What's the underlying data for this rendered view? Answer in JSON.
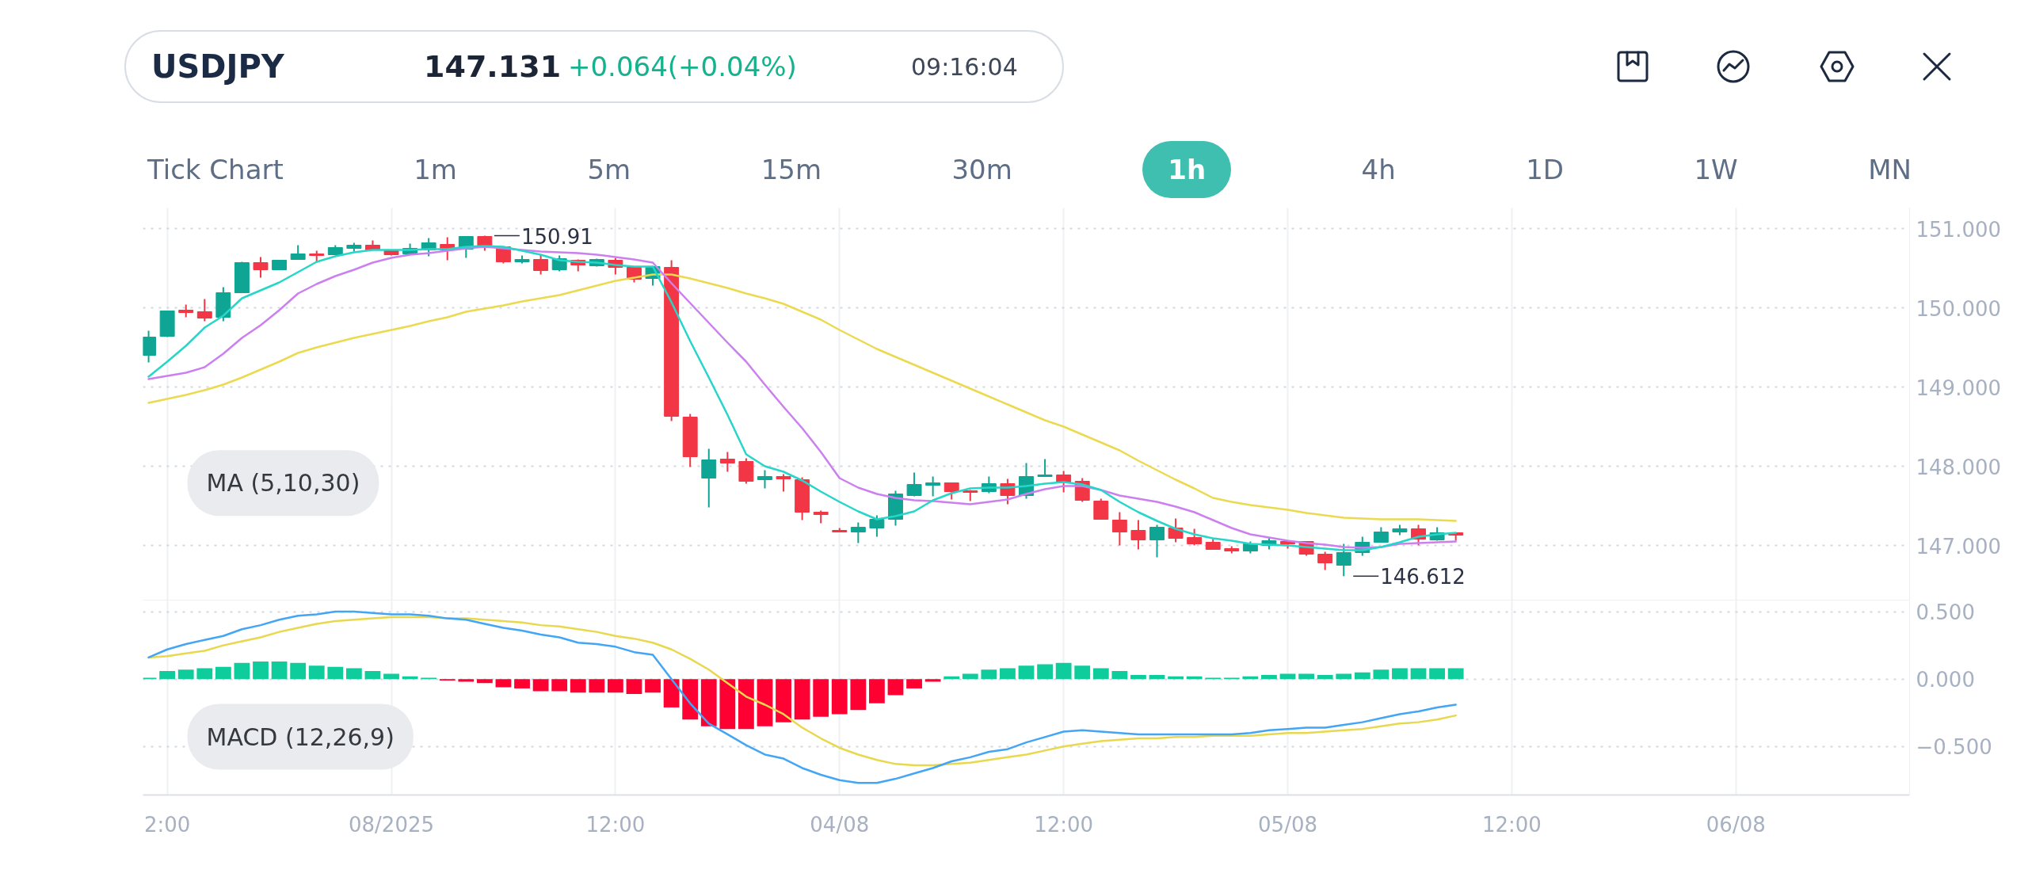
{
  "chart_data": [
    {
      "type": "other",
      "title": "USDJPY",
      "annotations": [
        "147.131",
        "+0.064(+0.04%)",
        "09:16:04"
      ],
      "colors": [
        "#1b2536",
        "#14b38e",
        "#3d4758"
      ]
    },
    {
      "type": "other",
      "annotations": [
        "Tick Chart",
        "1m",
        "5m",
        "15m",
        "30m",
        "1h",
        "4h",
        "1D",
        "1W",
        "MN"
      ]
    },
    {
      "type": "candlestick",
      "categories": [
        null,
        null,
        null,
        null,
        null,
        null,
        null,
        null,
        null,
        null,
        null,
        null,
        null,
        null,
        null,
        null,
        null,
        null,
        null,
        null,
        null,
        null,
        null,
        null,
        null,
        null,
        null,
        null,
        null,
        null,
        null,
        null,
        null,
        null,
        null,
        null,
        null,
        null,
        null,
        null,
        null,
        null,
        null,
        null,
        null,
        null,
        null,
        null,
        null,
        null,
        null,
        null,
        null,
        null,
        null,
        null,
        null,
        null,
        null,
        null,
        null,
        null,
        null,
        null,
        null,
        null,
        null,
        null,
        null,
        null,
        null,
        null,
        null,
        null,
        null,
        null,
        null,
        null,
        null,
        null,
        null,
        null,
        null,
        null,
        null,
        null,
        null,
        null,
        null,
        null,
        null,
        null,
        null,
        null,
        null
      ],
      "ohlc": [
        [
          149.4,
          149.71,
          149.31,
          149.63
        ],
        [
          149.64,
          149.96,
          149.63,
          149.96
        ],
        [
          149.97,
          150.04,
          149.88,
          149.94
        ],
        [
          149.95,
          150.11,
          149.83,
          149.87
        ],
        [
          149.88,
          150.26,
          149.83,
          150.19
        ],
        [
          150.19,
          150.58,
          150.19,
          150.57
        ],
        [
          150.57,
          150.64,
          150.38,
          150.48
        ],
        [
          150.48,
          150.6,
          150.48,
          150.6
        ],
        [
          150.61,
          150.79,
          150.61,
          150.68
        ],
        [
          150.68,
          150.72,
          150.57,
          150.66
        ],
        [
          150.67,
          150.79,
          150.67,
          150.76
        ],
        [
          150.75,
          150.82,
          150.71,
          150.79
        ],
        [
          150.79,
          150.85,
          150.73,
          150.73
        ],
        [
          150.72,
          150.72,
          150.66,
          150.67
        ],
        [
          150.68,
          150.81,
          150.68,
          150.75
        ],
        [
          150.73,
          150.88,
          150.65,
          150.82
        ],
        [
          150.8,
          150.89,
          150.6,
          150.73
        ],
        [
          150.74,
          150.9,
          150.63,
          150.9
        ],
        [
          150.9,
          150.91,
          150.72,
          150.77
        ],
        [
          150.77,
          150.77,
          150.56,
          150.58
        ],
        [
          150.58,
          150.66,
          150.56,
          150.61
        ],
        [
          150.61,
          150.67,
          150.42,
          150.47
        ],
        [
          150.48,
          150.66,
          150.46,
          150.62
        ],
        [
          150.6,
          150.61,
          150.46,
          150.54
        ],
        [
          150.53,
          150.62,
          150.52,
          150.61
        ],
        [
          150.6,
          150.63,
          150.42,
          150.51
        ],
        [
          150.51,
          150.51,
          150.32,
          150.36
        ],
        [
          150.37,
          150.53,
          150.28,
          150.52
        ],
        [
          150.51,
          150.6,
          148.57,
          148.63
        ],
        [
          148.62,
          148.66,
          147.99,
          148.12
        ],
        [
          147.85,
          148.22,
          147.48,
          148.08
        ],
        [
          148.09,
          148.18,
          147.93,
          148.04
        ],
        [
          148.06,
          148.1,
          147.78,
          147.81
        ],
        [
          147.83,
          147.95,
          147.72,
          147.87
        ],
        [
          147.87,
          147.9,
          147.68,
          147.84
        ],
        [
          147.83,
          147.86,
          147.32,
          147.42
        ],
        [
          147.42,
          147.44,
          147.28,
          147.39
        ],
        [
          147.19,
          147.22,
          147.17,
          147.17
        ],
        [
          147.17,
          147.29,
          147.03,
          147.23
        ],
        [
          147.22,
          147.38,
          147.11,
          147.33
        ],
        [
          147.33,
          147.69,
          147.25,
          147.65
        ],
        [
          147.63,
          147.92,
          147.62,
          147.77
        ],
        [
          147.76,
          147.87,
          147.62,
          147.79
        ],
        [
          147.79,
          147.79,
          147.58,
          147.68
        ],
        [
          147.69,
          147.7,
          147.56,
          147.67
        ],
        [
          147.68,
          147.87,
          147.66,
          147.78
        ],
        [
          147.78,
          147.84,
          147.52,
          147.63
        ],
        [
          147.63,
          148.04,
          147.59,
          147.87
        ],
        [
          147.87,
          148.09,
          147.87,
          147.89
        ],
        [
          147.89,
          147.94,
          147.67,
          147.8
        ],
        [
          147.81,
          147.85,
          147.55,
          147.57
        ],
        [
          147.56,
          147.59,
          147.33,
          147.33
        ],
        [
          147.32,
          147.42,
          147.0,
          147.17
        ],
        [
          147.19,
          147.32,
          146.95,
          147.07
        ],
        [
          147.07,
          147.26,
          146.85,
          147.23
        ],
        [
          147.22,
          147.34,
          147.04,
          147.09
        ],
        [
          147.1,
          147.21,
          147.0,
          147.02
        ],
        [
          147.04,
          147.08,
          146.95,
          146.95
        ],
        [
          146.96,
          146.99,
          146.9,
          146.93
        ],
        [
          146.93,
          147.05,
          146.9,
          147.02
        ],
        [
          147.0,
          147.1,
          146.95,
          147.06
        ],
        [
          147.05,
          147.05,
          146.96,
          147.02
        ],
        [
          147.05,
          147.05,
          146.87,
          146.89
        ],
        [
          146.89,
          146.92,
          146.69,
          146.78
        ],
        [
          146.75,
          147.02,
          146.612,
          146.91
        ],
        [
          146.91,
          147.11,
          146.87,
          147.04
        ],
        [
          147.04,
          147.23,
          147.04,
          147.17
        ],
        [
          147.17,
          147.26,
          147.13,
          147.21
        ],
        [
          147.21,
          147.26,
          147.0,
          147.08
        ],
        [
          147.07,
          147.23,
          147.06,
          147.16
        ],
        [
          147.16,
          147.16,
          147.06,
          147.13
        ],
        null,
        null,
        null,
        null,
        null,
        null,
        null,
        null,
        null,
        null,
        null,
        null,
        null,
        null,
        null,
        null,
        null,
        null,
        null,
        null,
        null,
        null,
        null,
        null
      ],
      "colors": [
        "#0ea594",
        "#0ea594",
        "#f23645",
        "#f23645",
        "#0ea594",
        "#0ea594",
        "#f23645",
        "#0ea594",
        "#0ea594",
        "#f23645",
        "#0ea594",
        "#0ea594",
        "#f23645",
        "#f23645",
        "#0ea594",
        "#0ea594",
        "#f23645",
        "#0ea594",
        "#f23645",
        "#f23645",
        "#0ea594",
        "#f23645",
        "#0ea594",
        "#f23645",
        "#0ea594",
        "#f23645",
        "#f23645",
        "#0ea594",
        "#f23645",
        "#f23645",
        "#0ea594",
        "#f23645",
        "#f23645",
        "#0ea594",
        "#f23645",
        "#f23645",
        "#f23645",
        "#f23645",
        "#0ea594",
        "#0ea594",
        "#0ea594",
        "#0ea594",
        "#0ea594",
        "#f23645",
        "#f23645",
        "#0ea594",
        "#f23645",
        "#0ea594",
        "#0ea594",
        "#f23645",
        "#f23645",
        "#f23645",
        "#f23645",
        "#f23645",
        "#0ea594",
        "#f23645",
        "#f23645",
        "#f23645",
        "#f23645",
        "#0ea594",
        "#0ea594",
        "#f23645",
        "#f23645",
        "#f23645",
        "#0ea594",
        "#0ea594",
        "#0ea594",
        "#0ea594",
        "#f23645",
        "#0ea594",
        "#f23645",
        null,
        null,
        null,
        null,
        null,
        null,
        null,
        null,
        null,
        null,
        null,
        null,
        null,
        null,
        null,
        null,
        null,
        null,
        null,
        null,
        null,
        null,
        null,
        null
      ],
      "series": [
        {
          "type": "line",
          "color": "#ebda50",
          "values": [
            148.8,
            148.85,
            148.9,
            148.96,
            149.03,
            149.12,
            149.22,
            149.32,
            149.43,
            149.5,
            149.56,
            149.62,
            149.67,
            149.72,
            149.77,
            149.83,
            149.88,
            149.95,
            149.99,
            150.03,
            150.08,
            150.12,
            150.16,
            150.22,
            150.28,
            150.34,
            150.38,
            150.42,
            150.42,
            150.37,
            150.31,
            150.25,
            150.18,
            150.12,
            150.05,
            149.95,
            149.85,
            149.72,
            149.6,
            149.48,
            149.38,
            149.28,
            149.18,
            149.08,
            148.98,
            148.88,
            148.78,
            148.68,
            148.58,
            148.5,
            148.4,
            148.3,
            148.2,
            148.07,
            147.95,
            147.83,
            147.72,
            147.6,
            147.55,
            147.51,
            147.48,
            147.45,
            147.41,
            147.38,
            147.35,
            147.34,
            147.33,
            147.33,
            147.33,
            147.32,
            147.31,
            null,
            null,
            null,
            null,
            null,
            null,
            null,
            null,
            null,
            null,
            null,
            null,
            null,
            null,
            null,
            null,
            null,
            null,
            null,
            null,
            null,
            null,
            null,
            null
          ]
        },
        {
          "type": "line",
          "color": "#cc80f0",
          "values": [
            149.1,
            149.14,
            149.18,
            149.25,
            149.42,
            149.62,
            149.78,
            149.97,
            150.18,
            150.3,
            150.4,
            150.48,
            150.57,
            150.63,
            150.67,
            150.69,
            150.72,
            150.75,
            150.77,
            150.75,
            150.73,
            150.71,
            150.7,
            150.69,
            150.67,
            150.64,
            150.61,
            150.57,
            150.31,
            150.06,
            149.81,
            149.56,
            149.32,
            149.03,
            148.75,
            148.48,
            148.18,
            147.85,
            147.73,
            147.65,
            147.6,
            147.57,
            147.56,
            147.54,
            147.52,
            147.55,
            147.58,
            147.65,
            147.71,
            147.75,
            147.75,
            147.7,
            147.63,
            147.59,
            147.55,
            147.49,
            147.42,
            147.32,
            147.22,
            147.14,
            147.1,
            147.06,
            147.03,
            147.01,
            146.98,
            146.97,
            146.98,
            147.02,
            147.03,
            147.04,
            147.05,
            null,
            null,
            null,
            null,
            null,
            null,
            null,
            null,
            null,
            null,
            null,
            null,
            null,
            null,
            null,
            null,
            null,
            null,
            null,
            null,
            null,
            null,
            null,
            null
          ]
        },
        {
          "type": "line",
          "color": "#26d6c8",
          "values": [
            149.13,
            149.32,
            149.52,
            149.75,
            149.9,
            150.12,
            150.22,
            150.32,
            150.45,
            150.58,
            150.65,
            150.7,
            150.73,
            150.73,
            150.73,
            150.74,
            150.74,
            150.77,
            150.78,
            150.77,
            150.72,
            150.67,
            150.6,
            150.58,
            150.57,
            150.54,
            150.52,
            150.52,
            150.07,
            149.58,
            149.12,
            148.65,
            148.15,
            148.0,
            147.93,
            147.82,
            147.68,
            147.55,
            147.43,
            147.33,
            147.37,
            147.43,
            147.57,
            147.66,
            147.72,
            147.73,
            147.73,
            147.75,
            147.78,
            147.8,
            147.77,
            147.7,
            147.55,
            147.42,
            147.31,
            147.21,
            147.14,
            147.09,
            147.06,
            147.02,
            147.01,
            147.0,
            146.98,
            146.96,
            146.94,
            146.94,
            146.98,
            147.04,
            147.11,
            147.14,
            147.16,
            null,
            null,
            null,
            null,
            null,
            null,
            null,
            null,
            null,
            null,
            null,
            null,
            null,
            null,
            null,
            null,
            null,
            null,
            null,
            null,
            null,
            null,
            null,
            null
          ]
        }
      ],
      "annotations": [
        "MA (5,10,30)",
        "150.91",
        "146.612"
      ],
      "ylim": [
        146.3,
        151.26
      ],
      "yticks": [
        {
          "value": 147,
          "label": "147.000"
        },
        {
          "value": 148,
          "label": "148.000"
        },
        {
          "value": 149,
          "label": "149.000"
        },
        {
          "value": 150,
          "label": "150.000"
        },
        {
          "value": 151,
          "label": "151.000"
        }
      ],
      "grid": true,
      "tick_labels": "y"
    },
    {
      "type": "bar",
      "categories": [
        null,
        "2:00",
        null,
        null,
        null,
        null,
        null,
        null,
        null,
        null,
        null,
        null,
        null,
        "08/2025",
        null,
        null,
        null,
        null,
        null,
        null,
        null,
        null,
        null,
        null,
        null,
        "12:00",
        null,
        null,
        null,
        null,
        null,
        null,
        null,
        null,
        null,
        null,
        null,
        "04/08",
        null,
        null,
        null,
        null,
        null,
        null,
        null,
        null,
        null,
        null,
        null,
        "12:00",
        null,
        null,
        null,
        null,
        null,
        null,
        null,
        null,
        null,
        null,
        null,
        "05/08",
        null,
        null,
        null,
        null,
        null,
        null,
        null,
        null,
        null,
        null,
        null,
        "12:00",
        null,
        null,
        null,
        null,
        null,
        null,
        null,
        null,
        null,
        null,
        null,
        "06/08",
        null,
        null,
        null,
        null,
        null,
        null,
        null,
        null,
        null
      ],
      "series": [
        {
          "colors": [
            "#0ecc9c",
            "#0ecc9c",
            "#0ecc9c",
            "#0ecc9c",
            "#0ecc9c",
            "#0ecc9c",
            "#0ecc9c",
            "#0ecc9c",
            "#0ecc9c",
            "#0ecc9c",
            "#0ecc9c",
            "#0ecc9c",
            "#0ecc9c",
            "#0ecc9c",
            "#0ecc9c",
            "#0ecc9c",
            "#ff0033",
            "#ff0033",
            "#ff0033",
            "#ff0033",
            "#ff0033",
            "#ff0033",
            "#ff0033",
            "#ff0033",
            "#ff0033",
            "#ff0033",
            "#ff0033",
            "#ff0033",
            "#ff0033",
            "#ff0033",
            "#ff0033",
            "#ff0033",
            "#ff0033",
            "#ff0033",
            "#ff0033",
            "#ff0033",
            "#ff0033",
            "#ff0033",
            "#ff0033",
            "#ff0033",
            "#ff0033",
            "#ff0033",
            "#ff0033",
            "#0ecc9c",
            "#0ecc9c",
            "#0ecc9c",
            "#0ecc9c",
            "#0ecc9c",
            "#0ecc9c",
            "#0ecc9c",
            "#0ecc9c",
            "#0ecc9c",
            "#0ecc9c",
            "#0ecc9c",
            "#0ecc9c",
            "#0ecc9c",
            "#0ecc9c",
            "#0ecc9c",
            "#0ecc9c",
            "#0ecc9c",
            "#0ecc9c",
            "#0ecc9c",
            "#0ecc9c",
            "#0ecc9c",
            "#0ecc9c",
            "#0ecc9c",
            "#0ecc9c",
            "#0ecc9c",
            "#0ecc9c",
            "#0ecc9c",
            "#0ecc9c",
            null,
            null,
            null,
            null,
            null,
            null,
            null,
            null,
            null,
            null,
            null,
            null,
            null,
            null,
            null,
            null,
            null,
            null,
            null,
            null,
            null,
            null,
            null,
            null
          ],
          "values": [
            0.01,
            0.06,
            0.07,
            0.08,
            0.09,
            0.12,
            0.13,
            0.13,
            0.12,
            0.1,
            0.09,
            0.08,
            0.06,
            0.04,
            0.02,
            0.01,
            -0.01,
            -0.02,
            -0.03,
            -0.06,
            -0.07,
            -0.09,
            -0.09,
            -0.1,
            -0.1,
            -0.1,
            -0.11,
            -0.1,
            -0.21,
            -0.3,
            -0.35,
            -0.37,
            -0.37,
            -0.35,
            -0.32,
            -0.3,
            -0.28,
            -0.26,
            -0.23,
            -0.18,
            -0.12,
            -0.07,
            -0.02,
            0.02,
            0.04,
            0.07,
            0.08,
            0.1,
            0.11,
            0.12,
            0.1,
            0.08,
            0.06,
            0.03,
            0.03,
            0.02,
            0.02,
            0.01,
            0.01,
            0.02,
            0.03,
            0.04,
            0.04,
            0.03,
            0.04,
            0.05,
            0.07,
            0.08,
            0.08,
            0.08,
            0.08,
            null,
            null,
            null,
            null,
            null,
            null,
            null,
            null,
            null,
            null,
            null,
            null,
            null,
            null,
            null,
            null,
            null,
            null,
            null,
            null,
            null,
            null,
            null,
            null
          ]
        },
        {
          "type": "line",
          "color": "#e8d84e",
          "values": [
            0.16,
            0.17,
            0.19,
            0.21,
            0.25,
            0.28,
            0.31,
            0.35,
            0.38,
            0.41,
            0.43,
            0.44,
            0.45,
            0.46,
            0.46,
            0.46,
            0.45,
            0.45,
            0.44,
            0.43,
            0.42,
            0.4,
            0.39,
            0.37,
            0.35,
            0.32,
            0.3,
            0.27,
            0.22,
            0.15,
            0.07,
            -0.03,
            -0.13,
            -0.19,
            -0.26,
            -0.36,
            -0.44,
            -0.51,
            -0.56,
            -0.6,
            -0.63,
            -0.64,
            -0.64,
            -0.63,
            -0.62,
            -0.6,
            -0.58,
            -0.56,
            -0.53,
            -0.5,
            -0.48,
            -0.46,
            -0.45,
            -0.44,
            -0.44,
            -0.43,
            -0.43,
            -0.42,
            -0.42,
            -0.42,
            -0.41,
            -0.4,
            -0.4,
            -0.39,
            -0.38,
            -0.37,
            -0.35,
            -0.33,
            -0.32,
            -0.3,
            -0.27,
            null,
            null,
            null,
            null,
            null,
            null,
            null,
            null,
            null,
            null,
            null,
            null,
            null,
            null,
            null,
            null,
            null,
            null,
            null,
            null,
            null,
            null,
            null,
            null
          ]
        },
        {
          "type": "line",
          "color": "#42a5f5",
          "values": [
            0.16,
            0.22,
            0.26,
            0.29,
            0.32,
            0.37,
            0.4,
            0.44,
            0.47,
            0.48,
            0.5,
            0.5,
            0.49,
            0.48,
            0.48,
            0.47,
            0.45,
            0.44,
            0.41,
            0.38,
            0.36,
            0.33,
            0.31,
            0.27,
            0.26,
            0.24,
            0.2,
            0.18,
            0.0,
            -0.18,
            -0.33,
            -0.41,
            -0.49,
            -0.56,
            -0.59,
            -0.66,
            -0.71,
            -0.75,
            -0.77,
            -0.77,
            -0.74,
            -0.7,
            -0.66,
            -0.61,
            -0.58,
            -0.54,
            -0.52,
            -0.47,
            -0.43,
            -0.39,
            -0.38,
            -0.39,
            -0.4,
            -0.41,
            -0.41,
            -0.41,
            -0.41,
            -0.41,
            -0.41,
            -0.4,
            -0.38,
            -0.37,
            -0.36,
            -0.36,
            -0.34,
            -0.32,
            -0.29,
            -0.26,
            -0.24,
            -0.21,
            -0.19,
            null,
            null,
            null,
            null,
            null,
            null,
            null,
            null,
            null,
            null,
            null,
            null,
            null,
            null,
            null,
            null,
            null,
            null,
            null,
            null,
            null,
            null,
            null,
            null
          ]
        }
      ],
      "annotations": [
        "MACD (12,26,9)"
      ],
      "ylim": [
        -0.86,
        0.58
      ],
      "yticks": [
        {
          "value": -0.5,
          "label": "−0.500"
        },
        {
          "value": 0,
          "label": "0.000"
        },
        {
          "value": 0.5,
          "label": "0.500"
        }
      ],
      "grid": true
    }
  ]
}
